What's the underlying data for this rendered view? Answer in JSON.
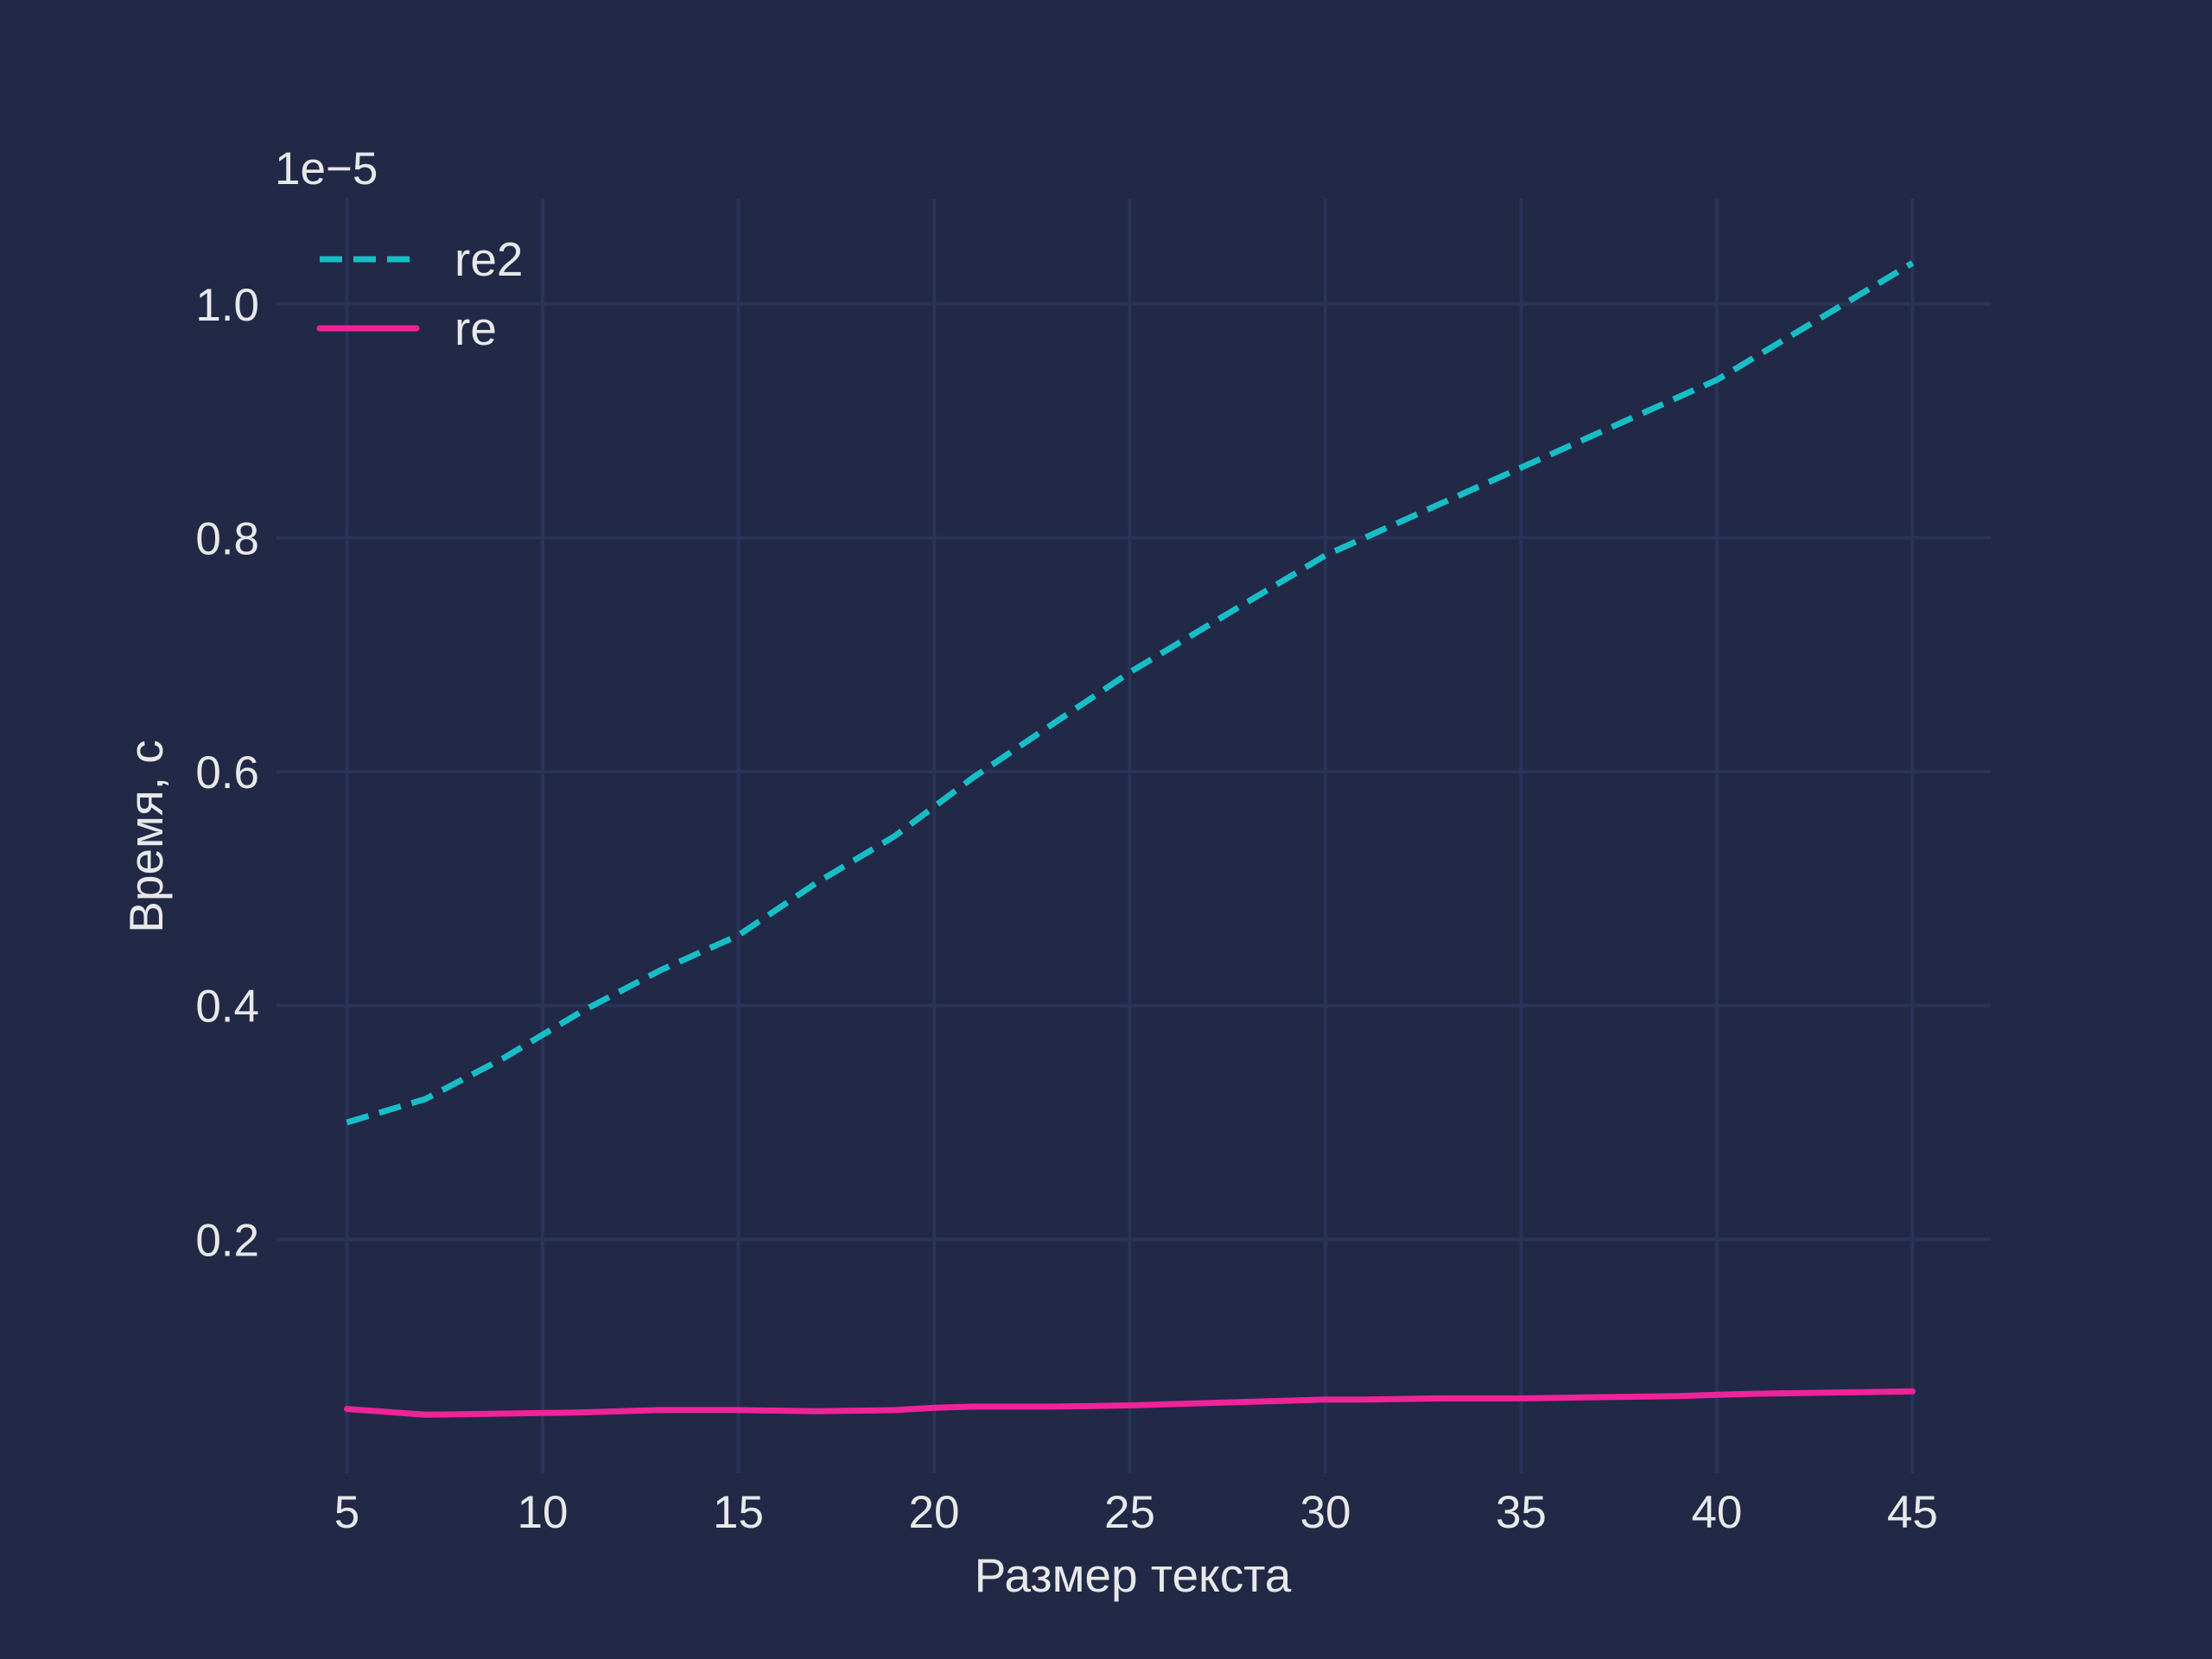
{
  "chart_data": {
    "type": "line",
    "title": "",
    "xlabel": "Размер текста",
    "ylabel": "Время, с",
    "y_offset_label": "1e−5",
    "xlim": [
      3.2,
      47.0
    ],
    "ylim": [
      0.0,
      1.09
    ],
    "x_ticks": [
      5,
      10,
      15,
      20,
      25,
      30,
      35,
      40,
      45
    ],
    "y_ticks": [
      0.2,
      0.4,
      0.6,
      0.8,
      1.0
    ],
    "y_tick_labels": [
      "0.2",
      "0.4",
      "0.6",
      "0.8",
      "1.0"
    ],
    "grid": true,
    "legend_position": "top-left",
    "x": [
      5,
      7,
      9,
      11,
      13,
      15,
      17,
      19,
      20,
      21,
      23,
      25,
      27,
      29,
      30,
      31,
      33,
      35,
      37,
      39,
      40,
      41,
      43,
      45
    ],
    "series": [
      {
        "name": "re2",
        "color": "#17bec7",
        "dash": "dashed",
        "values": [
          0.3,
          0.32,
          0.355,
          0.395,
          0.43,
          0.46,
          0.505,
          0.545,
          0.57,
          0.595,
          0.64,
          0.685,
          0.725,
          0.765,
          0.785,
          0.8,
          0.83,
          0.86,
          0.89,
          0.92,
          0.935,
          0.955,
          0.995,
          1.035
        ]
      },
      {
        "name": "re",
        "color": "#f0239a",
        "dash": "solid",
        "values": [
          0.055,
          0.05,
          0.051,
          0.052,
          0.054,
          0.054,
          0.053,
          0.054,
          0.056,
          0.057,
          0.057,
          0.058,
          0.06,
          0.062,
          0.063,
          0.063,
          0.064,
          0.064,
          0.065,
          0.066,
          0.067,
          0.068,
          0.069,
          0.07
        ]
      }
    ]
  }
}
